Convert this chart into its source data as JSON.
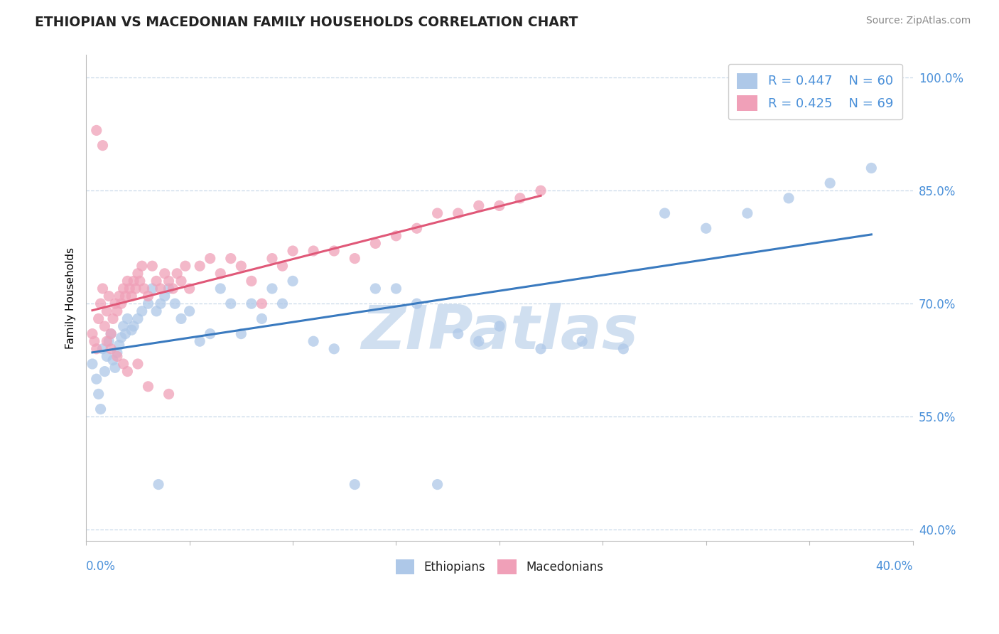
{
  "title": "ETHIOPIAN VS MACEDONIAN FAMILY HOUSEHOLDS CORRELATION CHART",
  "source_text": "Source: ZipAtlas.com",
  "ylabel": "Family Households",
  "xlim": [
    0.0,
    0.4
  ],
  "ylim": [
    0.385,
    1.03
  ],
  "legend_r1": "R = 0.447",
  "legend_n1": "N = 60",
  "legend_r2": "R = 0.425",
  "legend_n2": "N = 69",
  "color_ethiopian_fill": "#aec8e8",
  "color_macedonian_fill": "#f0a0b8",
  "color_trendline_blue": "#3a7abf",
  "color_trendline_pink": "#e05878",
  "color_axis_blue": "#4a90d9",
  "watermark_text": "ZIPatlas",
  "watermark_color": "#d0dff0",
  "background_color": "#ffffff",
  "grid_color": "#c8d8e8",
  "ytick_labels": [
    "100.0%",
    "85.0%",
    "70.0%",
    "55.0%",
    "40.0%"
  ],
  "ytick_values": [
    1.0,
    0.85,
    0.7,
    0.55,
    0.4
  ],
  "xtick_label_left": "0.0%",
  "xtick_label_right": "40.0%",
  "legend_eth_color": "#aec8e8",
  "legend_mac_color": "#f0a0b8",
  "eth_x": [
    0.003,
    0.005,
    0.006,
    0.007,
    0.008,
    0.009,
    0.01,
    0.011,
    0.012,
    0.013,
    0.014,
    0.015,
    0.016,
    0.017,
    0.018,
    0.019,
    0.02,
    0.022,
    0.023,
    0.025,
    0.027,
    0.03,
    0.032,
    0.034,
    0.036,
    0.038,
    0.04,
    0.043,
    0.046,
    0.05,
    0.055,
    0.06,
    0.065,
    0.07,
    0.075,
    0.08,
    0.085,
    0.09,
    0.095,
    0.1,
    0.11,
    0.12,
    0.13,
    0.14,
    0.15,
    0.16,
    0.17,
    0.18,
    0.19,
    0.2,
    0.22,
    0.24,
    0.26,
    0.28,
    0.3,
    0.32,
    0.34,
    0.36,
    0.38,
    0.035
  ],
  "eth_y": [
    0.62,
    0.6,
    0.58,
    0.56,
    0.64,
    0.61,
    0.63,
    0.65,
    0.66,
    0.625,
    0.615,
    0.635,
    0.645,
    0.655,
    0.67,
    0.66,
    0.68,
    0.665,
    0.67,
    0.68,
    0.69,
    0.7,
    0.72,
    0.69,
    0.7,
    0.71,
    0.72,
    0.7,
    0.68,
    0.69,
    0.65,
    0.66,
    0.72,
    0.7,
    0.66,
    0.7,
    0.68,
    0.72,
    0.7,
    0.73,
    0.65,
    0.64,
    0.46,
    0.72,
    0.72,
    0.7,
    0.46,
    0.66,
    0.65,
    0.67,
    0.64,
    0.65,
    0.64,
    0.82,
    0.8,
    0.82,
    0.84,
    0.86,
    0.88,
    0.46
  ],
  "mac_x": [
    0.003,
    0.004,
    0.005,
    0.006,
    0.007,
    0.008,
    0.009,
    0.01,
    0.011,
    0.012,
    0.013,
    0.014,
    0.015,
    0.016,
    0.017,
    0.018,
    0.019,
    0.02,
    0.021,
    0.022,
    0.023,
    0.024,
    0.025,
    0.026,
    0.027,
    0.028,
    0.03,
    0.032,
    0.034,
    0.036,
    0.038,
    0.04,
    0.042,
    0.044,
    0.046,
    0.048,
    0.05,
    0.055,
    0.06,
    0.065,
    0.07,
    0.075,
    0.08,
    0.085,
    0.09,
    0.095,
    0.1,
    0.11,
    0.12,
    0.13,
    0.14,
    0.15,
    0.16,
    0.17,
    0.18,
    0.19,
    0.2,
    0.21,
    0.22,
    0.005,
    0.008,
    0.01,
    0.012,
    0.015,
    0.018,
    0.02,
    0.025,
    0.03,
    0.04
  ],
  "mac_y": [
    0.66,
    0.65,
    0.64,
    0.68,
    0.7,
    0.72,
    0.67,
    0.69,
    0.71,
    0.66,
    0.68,
    0.7,
    0.69,
    0.71,
    0.7,
    0.72,
    0.71,
    0.73,
    0.72,
    0.71,
    0.73,
    0.72,
    0.74,
    0.73,
    0.75,
    0.72,
    0.71,
    0.75,
    0.73,
    0.72,
    0.74,
    0.73,
    0.72,
    0.74,
    0.73,
    0.75,
    0.72,
    0.75,
    0.76,
    0.74,
    0.76,
    0.75,
    0.73,
    0.7,
    0.76,
    0.75,
    0.77,
    0.77,
    0.77,
    0.76,
    0.78,
    0.79,
    0.8,
    0.82,
    0.82,
    0.83,
    0.83,
    0.84,
    0.85,
    0.93,
    0.91,
    0.65,
    0.64,
    0.63,
    0.62,
    0.61,
    0.62,
    0.59,
    0.58
  ]
}
